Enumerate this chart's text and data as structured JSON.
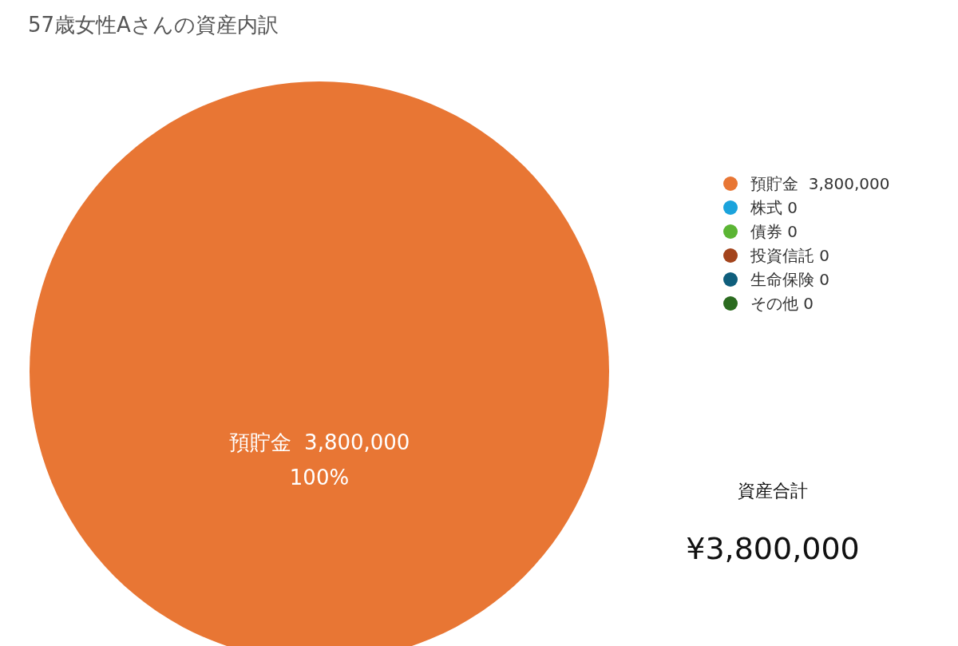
{
  "chart_data": {
    "type": "pie",
    "title": "57歳女性Aさんの資産内訳",
    "categories": [
      "預貯金  3,800,000",
      "株式 0",
      "債券 0",
      "投資信託 0",
      "生命保険 0",
      "その他 0"
    ],
    "values": [
      100,
      0,
      0,
      0,
      0,
      0
    ],
    "colors": [
      "#e87634",
      "#1ba3dc",
      "#5bb534",
      "#a3441c",
      "#0f5e7c",
      "#2b6b1f"
    ],
    "value_labels": [
      "100%",
      null,
      null,
      null,
      null,
      null
    ],
    "legend": "right",
    "annotations": [
      "資産合計",
      "¥3,800,000"
    ]
  }
}
